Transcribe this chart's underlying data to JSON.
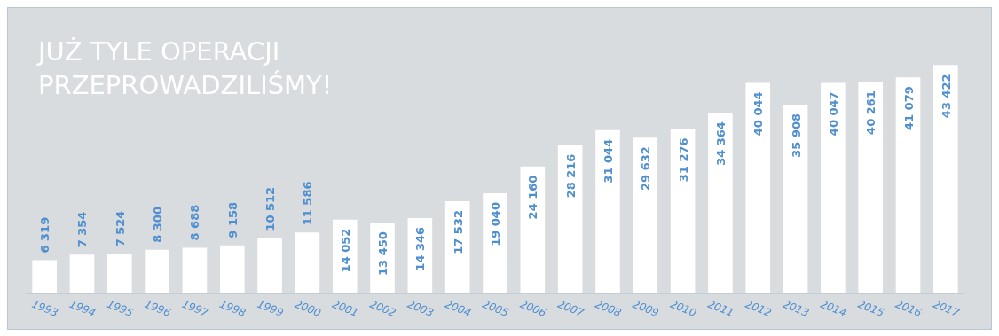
{
  "chart_data": {
    "type": "bar",
    "title": "JUŻ TYLE OPERACJI PRZEPROWADZILIŚMY!",
    "categories": [
      "1993",
      "1994",
      "1995",
      "1996",
      "1997",
      "1998",
      "1999",
      "2000",
      "2001",
      "2002",
      "2003",
      "2004",
      "2005",
      "2006",
      "2007",
      "2008",
      "2009",
      "2010",
      "2011",
      "2012",
      "2013",
      "2014",
      "2015",
      "2016",
      "2017"
    ],
    "values": [
      6319,
      7354,
      7524,
      8300,
      8688,
      9158,
      10512,
      11586,
      14052,
      13450,
      14346,
      17532,
      19040,
      24160,
      28216,
      31044,
      29632,
      31276,
      34364,
      40044,
      35908,
      40047,
      40261,
      41079,
      43422
    ],
    "value_labels": [
      "6 319",
      "7 354",
      "7 524",
      "8 300",
      "8 688",
      "9 158",
      "10 512",
      "11 586",
      "14 052",
      "13 450",
      "14 346",
      "17 532",
      "19 040",
      "24 160",
      "28 216",
      "31 044",
      "29 632",
      "31 276",
      "34 364",
      "40 044",
      "35 908",
      "40 047",
      "40 261",
      "41 079",
      "43 422"
    ],
    "color": "#ffffff",
    "grid": false,
    "legend": false,
    "tick_labels": "x"
  }
}
